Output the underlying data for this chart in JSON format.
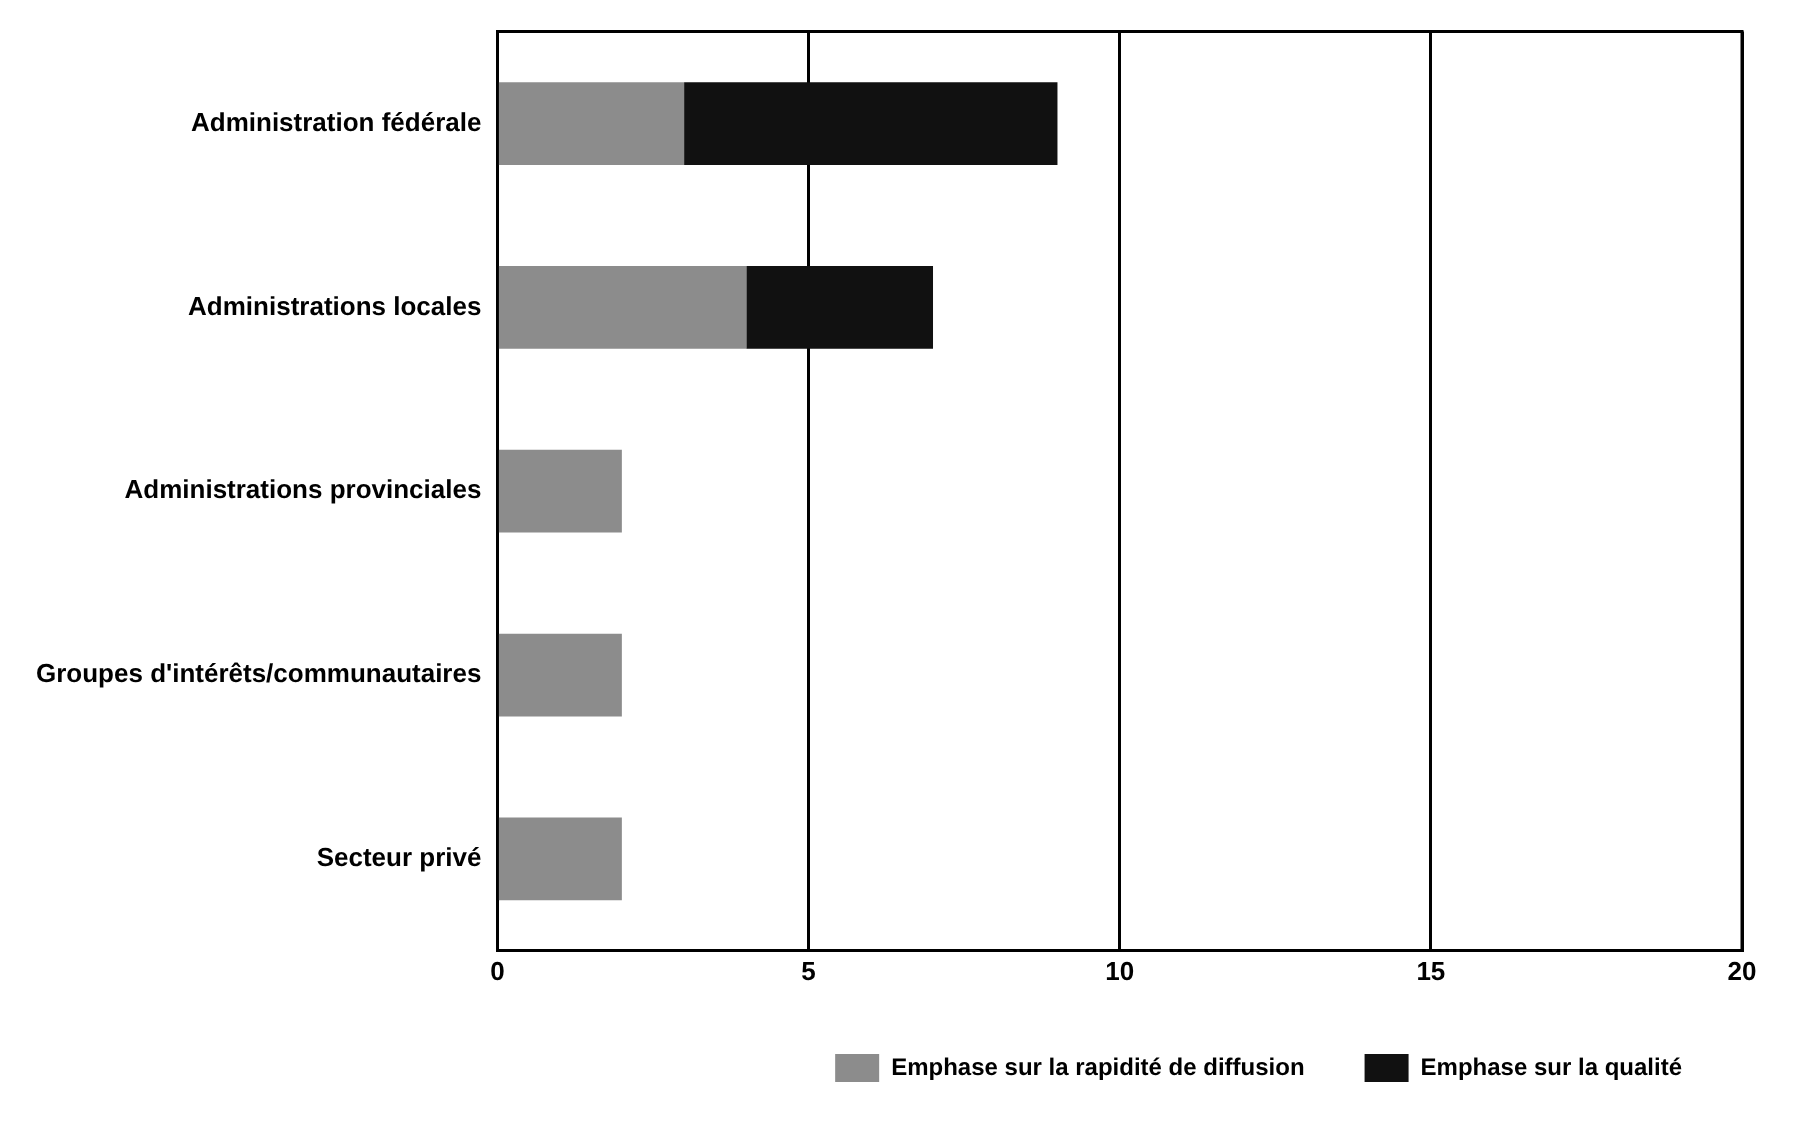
{
  "chart_data": {
    "type": "bar",
    "orientation": "horizontal",
    "stacked": true,
    "categories": [
      "Administration fédérale",
      "Administrations locales",
      "Administrations provinciales",
      "Groupes d'intérêts/communautaires",
      "Secteur privé"
    ],
    "series": [
      {
        "name": "Emphase sur la rapidité de diffusion",
        "color": "#8c8c8c",
        "values": [
          3,
          4,
          2,
          2,
          2
        ]
      },
      {
        "name": "Emphase sur la qualité",
        "color": "#111111",
        "values": [
          6,
          3,
          0,
          0,
          0
        ]
      }
    ],
    "xlim": [
      0,
      20
    ],
    "xticks": [
      0,
      5,
      10,
      15,
      20
    ],
    "grid": "x",
    "legend": "bottom right"
  }
}
